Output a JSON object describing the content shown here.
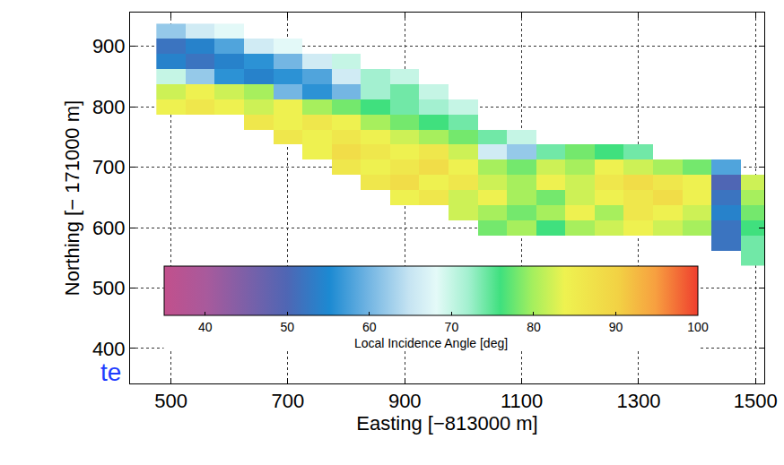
{
  "chart_data": {
    "type": "heatmap",
    "xlabel": "Easting [−813000 m]",
    "ylabel": "Northing [− 171000 m]",
    "x": [
      500,
      550,
      600,
      650,
      700,
      750,
      800,
      850,
      900,
      950,
      1000,
      1050,
      1100,
      1150,
      1200,
      1250,
      1300,
      1350,
      1400,
      1450,
      1500
    ],
    "y": [
      550,
      575,
      600,
      625,
      650,
      675,
      700,
      725,
      750,
      775,
      800,
      825,
      850,
      875,
      900,
      925
    ],
    "z": [
      [
        null,
        null,
        null,
        null,
        null,
        null,
        null,
        null,
        null,
        null,
        null,
        null,
        null,
        null,
        null,
        null,
        null,
        null,
        null,
        null,
        74
      ],
      [
        null,
        null,
        null,
        null,
        null,
        null,
        null,
        null,
        null,
        null,
        null,
        null,
        null,
        null,
        null,
        null,
        null,
        null,
        null,
        52,
        74
      ],
      [
        null,
        null,
        null,
        null,
        null,
        null,
        null,
        null,
        null,
        null,
        null,
        78,
        80,
        76,
        80,
        82,
        84,
        82,
        80,
        52,
        76
      ],
      [
        null,
        null,
        null,
        null,
        null,
        null,
        null,
        null,
        null,
        null,
        82,
        80,
        78,
        80,
        84,
        80,
        86,
        84,
        82,
        54,
        78
      ],
      [
        null,
        null,
        null,
        null,
        null,
        null,
        null,
        null,
        84,
        86,
        82,
        84,
        80,
        78,
        82,
        84,
        86,
        88,
        84,
        52,
        80
      ],
      [
        null,
        null,
        null,
        null,
        null,
        null,
        null,
        86,
        88,
        84,
        86,
        82,
        80,
        84,
        82,
        86,
        88,
        86,
        84,
        50,
        82
      ],
      [
        null,
        null,
        null,
        null,
        null,
        null,
        86,
        84,
        86,
        88,
        84,
        80,
        78,
        82,
        80,
        84,
        82,
        80,
        78,
        58,
        null
      ],
      [
        null,
        null,
        null,
        null,
        null,
        84,
        88,
        86,
        84,
        86,
        82,
        66,
        62,
        74,
        78,
        76,
        74,
        null,
        null,
        null,
        null
      ],
      [
        null,
        null,
        null,
        null,
        86,
        84,
        86,
        84,
        82,
        80,
        78,
        74,
        70,
        null,
        null,
        null,
        null,
        null,
        null,
        null,
        null
      ],
      [
        null,
        null,
        null,
        86,
        84,
        86,
        84,
        80,
        78,
        76,
        74,
        null,
        null,
        null,
        null,
        null,
        null,
        null,
        null,
        null,
        null
      ],
      [
        84,
        86,
        84,
        82,
        84,
        80,
        78,
        76,
        74,
        72,
        70,
        null,
        null,
        null,
        null,
        null,
        null,
        null,
        null,
        null,
        null
      ],
      [
        82,
        84,
        82,
        80,
        60,
        56,
        60,
        72,
        74,
        70,
        null,
        null,
        null,
        null,
        null,
        null,
        null,
        null,
        null,
        null,
        null
      ],
      [
        70,
        62,
        56,
        54,
        56,
        58,
        66,
        72,
        70,
        null,
        null,
        null,
        null,
        null,
        null,
        null,
        null,
        null,
        null,
        null,
        null
      ],
      [
        54,
        52,
        54,
        56,
        60,
        66,
        70,
        null,
        null,
        null,
        null,
        null,
        null,
        null,
        null,
        null,
        null,
        null,
        null,
        null,
        null
      ],
      [
        52,
        54,
        58,
        66,
        68,
        null,
        null,
        null,
        null,
        null,
        null,
        null,
        null,
        null,
        null,
        null,
        null,
        null,
        null,
        null,
        null
      ],
      [
        62,
        66,
        68,
        null,
        null,
        null,
        null,
        null,
        null,
        null,
        null,
        null,
        null,
        null,
        null,
        null,
        null,
        null,
        null,
        null,
        null
      ]
    ],
    "xlim": [
      430,
      1515
    ],
    "ylim": [
      342,
      956
    ],
    "xticks": [
      500,
      700,
      900,
      1100,
      1300,
      1500
    ],
    "yticks": [
      400,
      500,
      600,
      700,
      800,
      900
    ],
    "grid": true,
    "colorbar": {
      "title": "Local Incidence Angle [deg]",
      "range": [
        35,
        100
      ],
      "ticks": [
        40,
        50,
        60,
        70,
        80,
        90,
        100
      ]
    },
    "annotations": [
      "te"
    ]
  }
}
